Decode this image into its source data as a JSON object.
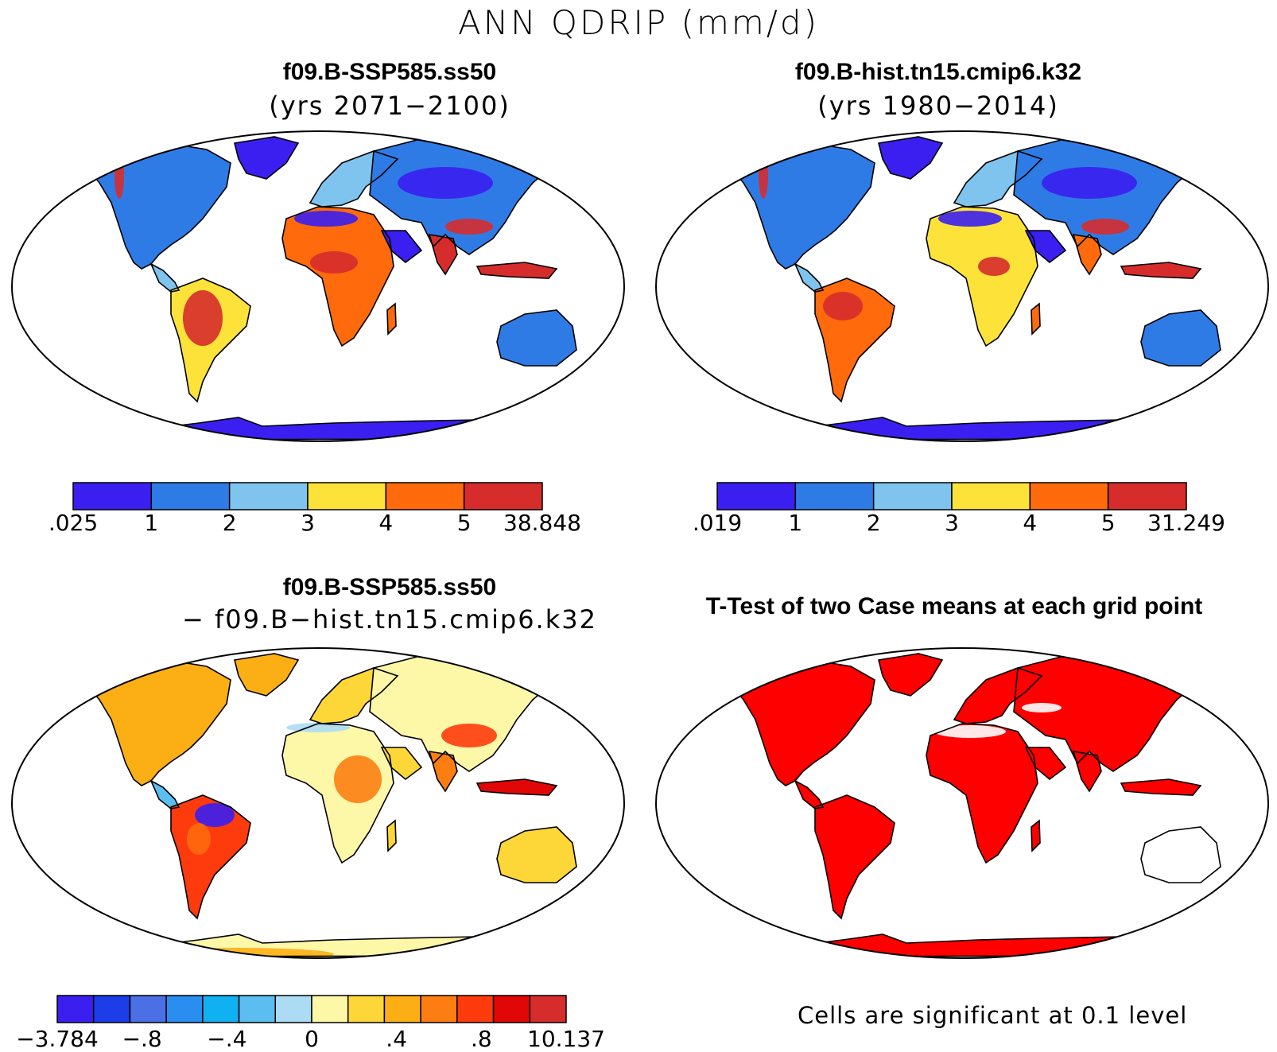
{
  "main_title": "ANN QDRIP (mm/d)",
  "panels": [
    {
      "title": "f09.B-SSP585.ss50",
      "subtitle": "(yrs 2071−2100)",
      "colorbar": {
        "colors": [
          "#3a1ff0",
          "#2f7be6",
          "#7fc4ee",
          "#fde23a",
          "#fe6a0c",
          "#d62c2c"
        ],
        "labels": [
          ".025",
          "1",
          "2",
          "3",
          "4",
          "5",
          "38.848"
        ]
      }
    },
    {
      "title": "f09.B-hist.tn15.cmip6.k32",
      "subtitle": "(yrs 1980−2014)",
      "colorbar": {
        "colors": [
          "#3a1ff0",
          "#2f7be6",
          "#7fc4ee",
          "#fde23a",
          "#fe6a0c",
          "#d62c2c"
        ],
        "labels": [
          ".019",
          "1",
          "2",
          "3",
          "4",
          "5",
          "31.249"
        ]
      }
    },
    {
      "title": "f09.B-SSP585.ss50",
      "subtitle": "− f09.B−hist.tn15.cmip6.k32",
      "colorbar": {
        "colors": [
          "#3a1ff0",
          "#1d3de8",
          "#4b6fe4",
          "#2a8df0",
          "#0fb1f2",
          "#5cbdf0",
          "#acdcf3",
          "#fdf7a8",
          "#fdd737",
          "#fcaf14",
          "#fc7e12",
          "#fe3b0c",
          "#e20707",
          "#d62c2c"
        ],
        "labels": [
          "−3.784",
          "−.8",
          "−.4",
          "0",
          ".4",
          ".8",
          "10.137"
        ]
      }
    },
    {
      "title": "T-Test of two Case means at each grid point",
      "note": "Cells are significant at 0.1 level",
      "color": "#fe0000"
    }
  ]
}
